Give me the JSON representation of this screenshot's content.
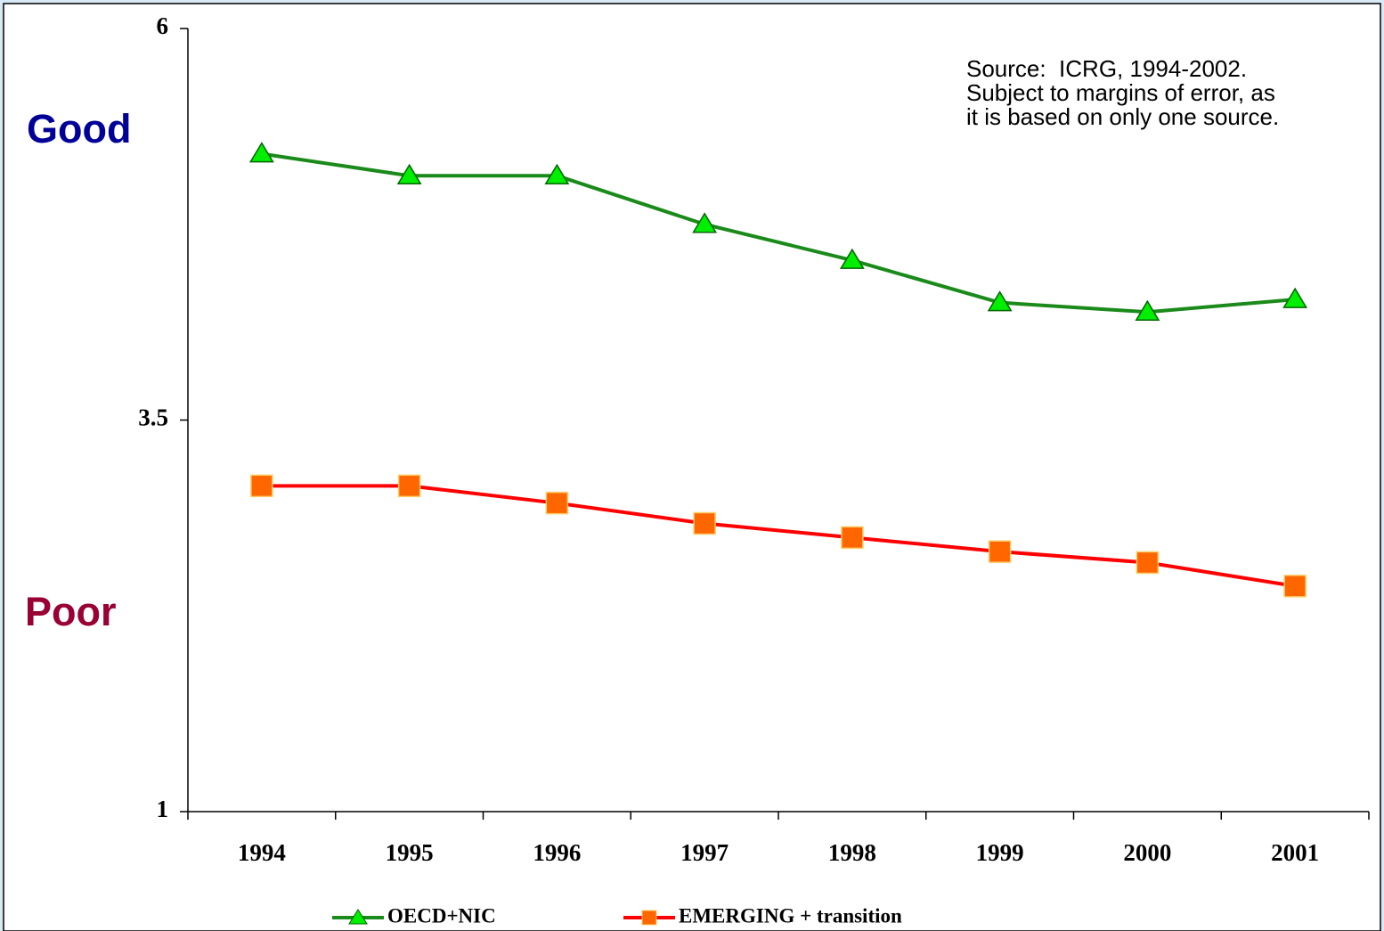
{
  "chart_data": {
    "type": "line",
    "annotations": {
      "good": "Good",
      "poor": "Poor",
      "source": [
        "Source:  ICRG, 1994-2002.",
        "Subject to margins of error, as",
        "it is based on only one source."
      ]
    },
    "categories": [
      "1994",
      "1995",
      "1996",
      "1997",
      "1998",
      "1999",
      "2000",
      "2001"
    ],
    "series": [
      {
        "name": "OECD+NIC",
        "color": "#1a8a1a",
        "marker": "triangle",
        "marker_color": "#00ee00",
        "values": [
          5.2,
          5.06,
          5.06,
          4.75,
          4.52,
          4.25,
          4.19,
          4.27
        ]
      },
      {
        "name": "EMERGING + transition",
        "color": "#ff0000",
        "marker": "square",
        "marker_color": "#ff6600",
        "values": [
          3.08,
          3.08,
          2.97,
          2.84,
          2.75,
          2.66,
          2.59,
          2.44
        ]
      }
    ],
    "ylim": [
      1,
      6
    ],
    "yticks": [
      1,
      3.5,
      6
    ],
    "grid": false,
    "legend": "bottom"
  }
}
